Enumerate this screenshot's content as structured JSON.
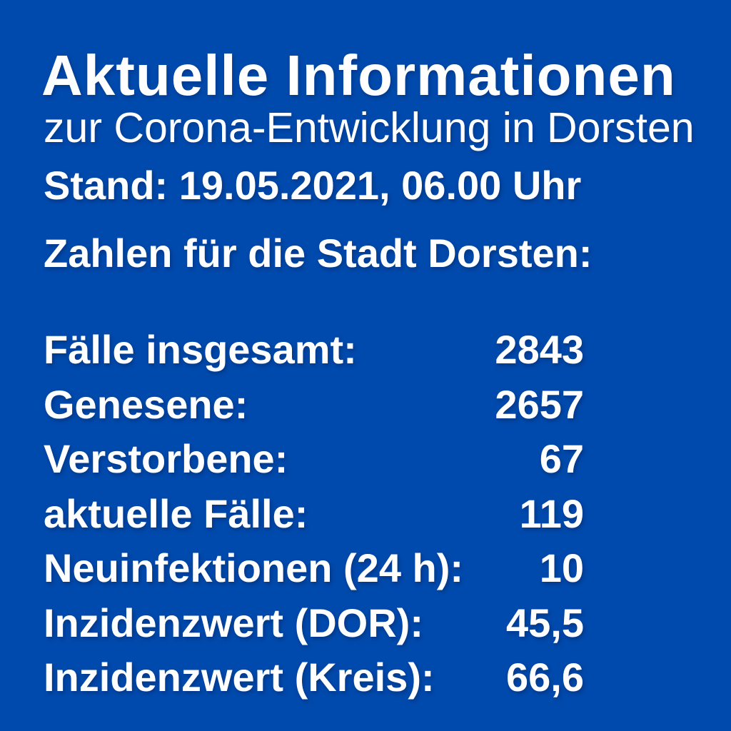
{
  "page": {
    "background_color": "#004AAD",
    "text_color": "#FFFFFF"
  },
  "header": {
    "title": "Aktuelle Informationen",
    "subtitle": "zur Corona-Entwicklung in Dorsten",
    "date_line": "Stand: 19.05.2021, 06.00 Uhr",
    "section_heading": "Zahlen für die Stadt Dorsten:"
  },
  "stats": {
    "rows": [
      {
        "label": "Fälle insgesamt:",
        "value": "2843"
      },
      {
        "label": "Genesene:",
        "value": "2657"
      },
      {
        "label": "Verstorbene:",
        "value": "67"
      },
      {
        "label": "aktuelle Fälle:",
        "value": "119"
      },
      {
        "label": "Neuinfektionen (24 h):",
        "value": "10"
      },
      {
        "label": "Inzidenzwert (DOR):",
        "value": "45,5"
      },
      {
        "label": "Inzidenzwert (Kreis):",
        "value": "66,6"
      }
    ]
  },
  "chart_data": {
    "type": "table",
    "title": "Aktuelle Informationen",
    "subtitle": "zur Corona-Entwicklung in Dorsten",
    "as_of": "Stand: 19.05.2021, 06.00 Uhr",
    "section": "Zahlen für die Stadt Dorsten:",
    "categories": [
      "Fälle insgesamt",
      "Genesene",
      "Verstorbene",
      "aktuelle Fälle",
      "Neuinfektionen (24 h)",
      "Inzidenzwert (DOR)",
      "Inzidenzwert (Kreis)"
    ],
    "values": [
      2843,
      2657,
      67,
      119,
      10,
      45.5,
      66.6
    ],
    "value_display": [
      "2843",
      "2657",
      "67",
      "119",
      "10",
      "45,5",
      "66,6"
    ]
  }
}
